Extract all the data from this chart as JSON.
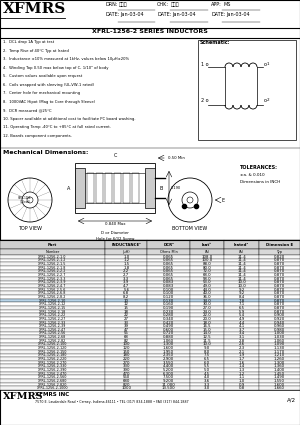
{
  "title_company": "XFMRS",
  "title_series": "XFRL-1256-2 SERIES INDUCTORS",
  "drn_label": "DRN:",
  "drn": "赵浦山",
  "chk_label": "CHK:",
  "chk": "李山神",
  "app_label": "APP:",
  "app": "MS",
  "date_drn_label": "DATE:",
  "date_drn": "Jan-03-04",
  "date_chk_label": "DATE:",
  "date_chk": "Jan-03-04",
  "date_app_label": "DATE:",
  "date_app": "Jan-03-04",
  "notes": [
    "1.  DCL drop 1A Typ at test",
    "2.  Temp Rise of 40°C Typ at Irated",
    "3.  Inductance ±10% measured at 1kHz, values below 10μH±20%",
    "4.  Winding Top 0.50 max below top of C, 1/10\" of body",
    "5.  Custom values available upon request",
    "6.  Coils wrapped with sleeving (UL-VW-1 rated)",
    "7.  Center hole for mechanical mounting",
    "8.  1000VAC Hipot (Mag to Core through Sleeve)",
    "9.  DCR measured @25°C",
    "10. Spacer available at additional cost to facilitate PC board washing.",
    "11. Operating Temp -40°C to +85°C at full rated current.",
    "12. Boards component components."
  ],
  "schematic_label": "Schematic:",
  "mech_dim_label": "Mechanical Dimensions:",
  "top_view_label": "TOP VIEW",
  "bottom_view_label": "BOTTOM VIEW",
  "tolerances_label": "TOLERANCES:",
  "tol_val": "±a. & 0.010",
  "dim_in": "Dimensions in INCH",
  "dim_c_val": "0.50 Min",
  "dim_max": "0.840 Max",
  "dim_d_text1": "D or Diameter",
  "dim_d_text2": "Hole for 6/32 Screw",
  "dim_0190": "0.190",
  "table_headers": [
    "Part",
    "INDUCTANCE¹",
    "DCR²",
    "Isat³",
    "Irated⁴",
    "Dimension E"
  ],
  "table_subheaders": [
    "Number",
    "(μH)",
    "Ohms Min",
    "(A)",
    "(A)",
    "Typ"
  ],
  "table_data": [
    [
      "XFRL-1256-2-1.0",
      "1.0",
      "0.065",
      "108.0",
      "11.4",
      "0.820"
    ],
    [
      "XFRL-1256-2-1.2",
      "1.2",
      "0.065",
      "100.0",
      "11.4",
      "0.870"
    ],
    [
      "XFRL-1256-2-1.5",
      "1.5",
      "0.065",
      "88.0",
      "11.4",
      "0.870"
    ],
    [
      "XFRL-1256-2-1.8",
      "1.8",
      "0.065",
      "80.0",
      "11.4",
      "0.870"
    ],
    [
      "XFRL-1256-2-2.2",
      "2.2",
      "0.065",
      "72.0",
      "11.4",
      "0.870"
    ],
    [
      "XFRL-1256-2-2.7",
      "2.7",
      "0.065",
      "68.0",
      "11.4",
      "0.870"
    ],
    [
      "XFRL-1256-2-3.3",
      "3.3",
      "0.065",
      "58.0",
      "11.4",
      "0.870"
    ],
    [
      "XFRL-1256-2-3.9",
      "3.9",
      "0.083",
      "53.0",
      "10.0",
      "0.870"
    ],
    [
      "XFRL-1256-2-4.7",
      "4.7",
      "0.083",
      "49.0",
      "10.0",
      "0.870"
    ],
    [
      "XFRL-1256-2-5.6",
      "5.6",
      "0.100",
      "44.0",
      "9.2",
      "0.870"
    ],
    [
      "XFRL-1256-2-6.8",
      "6.8",
      "0.100",
      "40.0",
      "9.2",
      "0.870"
    ],
    [
      "XFRL-1256-2-8.2",
      "8.2",
      "0.120",
      "36.0",
      "8.4",
      "0.870"
    ],
    [
      "XFRL-1256-2-10",
      "10",
      "0.130",
      "34.0",
      "7.8",
      "0.870"
    ],
    [
      "XFRL-1256-2-12",
      "12",
      "0.160",
      "30.0",
      "7.1",
      "0.870"
    ],
    [
      "XFRL-1256-2-15",
      "15",
      "0.190",
      "27.0",
      "6.5",
      "0.870"
    ],
    [
      "XFRL-1256-2-18",
      "18",
      "0.230",
      "24.0",
      "5.9",
      "0.870"
    ],
    [
      "XFRL-1256-2-22",
      "22",
      "0.280",
      "22.0",
      "5.4",
      "0.900"
    ],
    [
      "XFRL-1256-2-27",
      "27",
      "0.340",
      "20.0",
      "4.9",
      "0.920"
    ],
    [
      "XFRL-1256-2-33",
      "33",
      "0.420",
      "18.0",
      "4.4",
      "0.940"
    ],
    [
      "XFRL-1256-2-39",
      "39",
      "0.490",
      "16.5",
      "4.1",
      "0.960"
    ],
    [
      "XFRL-1256-2-47",
      "47",
      "0.600",
      "15.0",
      "3.7",
      "0.980"
    ],
    [
      "XFRL-1256-2-56",
      "56",
      "0.720",
      "14.0",
      "3.4",
      "1.000"
    ],
    [
      "XFRL-1256-2-68",
      "68",
      "0.880",
      "12.5",
      "3.1",
      "1.030"
    ],
    [
      "XFRL-1256-2-82",
      "82",
      "1.060",
      "11.5",
      "2.8",
      "1.060"
    ],
    [
      "XFRL-1256-2-100",
      "100",
      "1.300",
      "10.0",
      "2.6",
      "1.090"
    ],
    [
      "XFRL-1256-2-120",
      "120",
      "1.600",
      "9.0",
      "2.3",
      "1.130"
    ],
    [
      "XFRL-1256-2-150",
      "150",
      "1.950",
      "8.0",
      "2.1",
      "1.170"
    ],
    [
      "XFRL-1256-2-180",
      "180",
      "2.350",
      "7.5",
      "1.9",
      "1.210"
    ],
    [
      "XFRL-1256-2-220",
      "220",
      "2.900",
      "6.5",
      "1.7",
      "1.260"
    ],
    [
      "XFRL-1256-2-270",
      "270",
      "3.550",
      "6.0",
      "1.6",
      "1.300"
    ],
    [
      "XFRL-1256-2-330",
      "330",
      "4.400",
      "5.5",
      "1.4",
      "1.360"
    ],
    [
      "XFRL-1256-2-390",
      "390",
      "5.200",
      "5.0",
      "1.3",
      "1.400"
    ],
    [
      "XFRL-1256-2-470",
      "470",
      "6.300",
      "4.5",
      "1.2",
      "1.450"
    ],
    [
      "XFRL-1256-2-560",
      "560",
      "7.500",
      "4.0",
      "1.1",
      "1.490"
    ],
    [
      "XFRL-1256-2-680",
      "680",
      "9.200",
      "3.6",
      "1.0",
      "1.550"
    ],
    [
      "XFRL-1256-2-820",
      "820",
      "11.000",
      "3.3",
      "0.9",
      "1.600"
    ],
    [
      "XFRL-1256-2-1000",
      "1000",
      "13.500",
      "3.0",
      "0.8",
      "1.660"
    ]
  ],
  "highlight_row": 12,
  "highlight_color": "#b8d4e8",
  "footer_company": "XFMRS",
  "footer_name": "XFMRS INC",
  "footer_address": "7570 E. Lauderdale Road • Carney, Indiana 46111 • TEL (317) 834-1888 • FAX (317) 844-1887",
  "footer_page": "A/2",
  "bg_color": "#ffffff"
}
